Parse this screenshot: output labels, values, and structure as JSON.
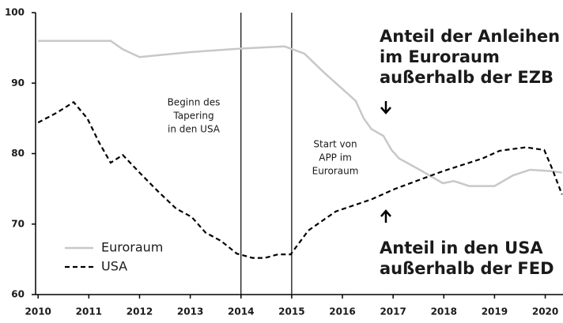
{
  "chart_data": {
    "type": "line",
    "xlim": [
      2009.95,
      2020.35
    ],
    "xticks": [
      2010,
      2011,
      2012,
      2013,
      2014,
      2015,
      2016,
      2017,
      2018,
      2019,
      2020
    ],
    "ylim": [
      60,
      100
    ],
    "yticks": [
      60,
      70,
      80,
      90,
      100
    ],
    "vlines": [
      2014,
      2015
    ],
    "legend": "lower left",
    "series": [
      {
        "name": "Euroraum",
        "color": "#c8c8c8",
        "dash": false,
        "x": [
          2010,
          2011.43,
          2011.67,
          2012,
          2013,
          2014,
          2014.86,
          2015.25,
          2015.64,
          2016.26,
          2016.42,
          2016.57,
          2016.81,
          2016.97,
          2017.12,
          2017.5,
          2017.98,
          2018.2,
          2018.5,
          2019,
          2019.36,
          2019.7,
          2020.14,
          2020.33
        ],
        "values": [
          96,
          96,
          94.8,
          93.7,
          94.4,
          94.9,
          95.2,
          94.2,
          91.5,
          87.5,
          85,
          83.5,
          82.5,
          80.5,
          79.3,
          77.8,
          75.8,
          76.1,
          75.4,
          75.4,
          76.9,
          77.7,
          77.5,
          77.3
        ]
      },
      {
        "name": "USA",
        "color": "#000000",
        "dash": true,
        "x": [
          2010,
          2010.37,
          2010.7,
          2010.97,
          2011.2,
          2011.43,
          2011.67,
          2012,
          2012.37,
          2012.72,
          2013.03,
          2013.3,
          2013.61,
          2013.92,
          2014.23,
          2014.47,
          2014.73,
          2014.98,
          2015.33,
          2015.87,
          2016.57,
          2017.04,
          2017.98,
          2018.76,
          2019.1,
          2019.62,
          2019.98,
          2020.14,
          2020.33
        ],
        "values": [
          84.4,
          85.8,
          87.3,
          85,
          81.6,
          78.7,
          79.8,
          77.3,
          74.6,
          72.2,
          71,
          68.8,
          67.6,
          65.8,
          65.2,
          65.2,
          65.7,
          65.7,
          69.1,
          71.8,
          73.5,
          75,
          77.5,
          79.3,
          80.4,
          80.9,
          80.5,
          77.8,
          74.2
        ]
      }
    ],
    "annotations": [
      {
        "lines": [
          "Beginn des",
          "Tapering",
          "in den USA"
        ]
      },
      {
        "lines": [
          "Start von",
          "APP im",
          "Euroraum"
        ]
      },
      {
        "lines": [
          "Anteil der Anleihen",
          "im Euroraum",
          "außerhalb der EZB"
        ]
      },
      {
        "lines": [
          "Anteil in den USA",
          "außerhalb der FED"
        ]
      }
    ]
  }
}
